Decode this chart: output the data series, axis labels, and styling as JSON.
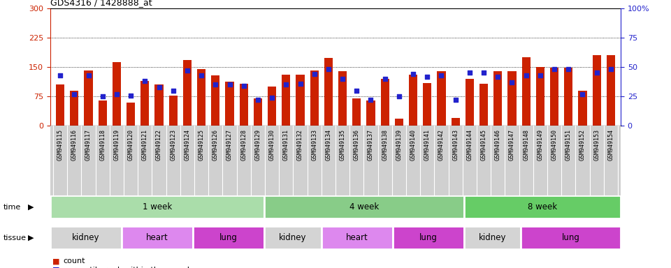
{
  "title": "GDS4316 / 1428888_at",
  "samples": [
    "GSM949115",
    "GSM949116",
    "GSM949117",
    "GSM949118",
    "GSM949119",
    "GSM949120",
    "GSM949121",
    "GSM949122",
    "GSM949123",
    "GSM949124",
    "GSM949125",
    "GSM949126",
    "GSM949127",
    "GSM949128",
    "GSM949129",
    "GSM949130",
    "GSM949131",
    "GSM949132",
    "GSM949133",
    "GSM949134",
    "GSM949135",
    "GSM949136",
    "GSM949137",
    "GSM949138",
    "GSM949139",
    "GSM949140",
    "GSM949141",
    "GSM949142",
    "GSM949143",
    "GSM949144",
    "GSM949145",
    "GSM949146",
    "GSM949147",
    "GSM949148",
    "GSM949149",
    "GSM949150",
    "GSM949151",
    "GSM949152",
    "GSM949153",
    "GSM949154"
  ],
  "count": [
    105,
    90,
    142,
    65,
    162,
    60,
    115,
    105,
    78,
    168,
    145,
    128,
    112,
    108,
    70,
    100,
    130,
    130,
    142,
    173,
    140,
    70,
    65,
    120,
    18,
    130,
    110,
    140,
    20,
    120,
    108,
    140,
    140,
    175,
    150,
    148,
    148,
    90,
    180,
    180
  ],
  "percentile": [
    43,
    27,
    43,
    25,
    27,
    26,
    38,
    33,
    30,
    47,
    43,
    35,
    35,
    34,
    22,
    24,
    35,
    36,
    44,
    48,
    40,
    30,
    22,
    40,
    25,
    44,
    42,
    43,
    22,
    45,
    45,
    42,
    37,
    43,
    43,
    48,
    48,
    27,
    45,
    48
  ],
  "left_ylim": [
    0,
    300
  ],
  "left_yticks": [
    0,
    75,
    150,
    225,
    300
  ],
  "right_ylim": [
    0,
    100
  ],
  "right_yticks": [
    0,
    25,
    50,
    75,
    100
  ],
  "bar_color": "#cc2200",
  "dot_color": "#2222cc",
  "time_groups": [
    {
      "label": "1 week",
      "start": 0,
      "end": 15,
      "color": "#aaddaa"
    },
    {
      "label": "4 week",
      "start": 15,
      "end": 29,
      "color": "#88cc88"
    },
    {
      "label": "8 week",
      "start": 29,
      "end": 40,
      "color": "#66bb66"
    }
  ],
  "tissue_groups": [
    {
      "label": "kidney",
      "start": 0,
      "end": 5,
      "color": "#d8d8d8"
    },
    {
      "label": "heart",
      "start": 5,
      "end": 10,
      "color": "#dd88ee"
    },
    {
      "label": "lung",
      "start": 10,
      "end": 15,
      "color": "#cc44cc"
    },
    {
      "label": "kidney",
      "start": 15,
      "end": 19,
      "color": "#d8d8d8"
    },
    {
      "label": "heart",
      "start": 19,
      "end": 24,
      "color": "#dd88ee"
    },
    {
      "label": "lung",
      "start": 24,
      "end": 29,
      "color": "#cc44cc"
    },
    {
      "label": "kidney",
      "start": 29,
      "end": 33,
      "color": "#d8d8d8"
    },
    {
      "label": "lung",
      "start": 33,
      "end": 40,
      "color": "#cc44cc"
    }
  ],
  "grid_lines": [
    75,
    150,
    225
  ],
  "time_label": "time",
  "tissue_label": "tissue",
  "xtick_bg": "#d0d0d0"
}
